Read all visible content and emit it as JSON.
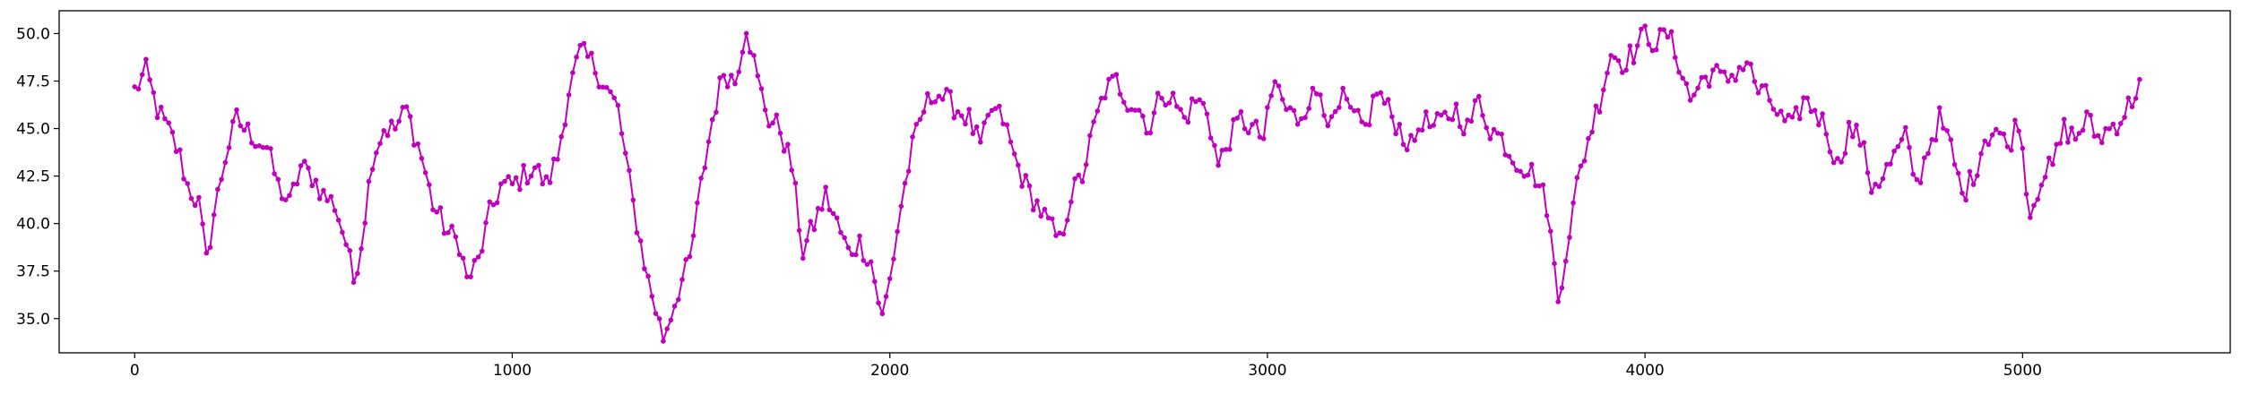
{
  "chart_data": {
    "type": "line",
    "title": "",
    "xlabel": "",
    "ylabel": "",
    "xlim": [
      -200,
      5550
    ],
    "ylim": [
      33.2,
      51.2
    ],
    "x_ticks": [
      0,
      1000,
      2000,
      3000,
      4000,
      5000
    ],
    "y_ticks": [
      35.0,
      37.5,
      40.0,
      42.5,
      45.0,
      47.5,
      50.0
    ],
    "x_tick_labels": [
      "0",
      "1000",
      "2000",
      "3000",
      "4000",
      "5000"
    ],
    "y_tick_labels": [
      "35.0",
      "37.5",
      "40.0",
      "42.5",
      "45.0",
      "47.5",
      "50.0"
    ],
    "grid": false,
    "legend": "none",
    "series": [
      {
        "color": "#bf00bf",
        "marker": "circle",
        "x_start": 0,
        "x_step": 10,
        "anchors": [
          [
            0,
            47.0
          ],
          [
            30,
            48.0
          ],
          [
            60,
            46.0
          ],
          [
            100,
            44.5
          ],
          [
            120,
            43.5
          ],
          [
            140,
            42.0
          ],
          [
            170,
            41.0
          ],
          [
            190,
            38.0
          ],
          [
            210,
            40.5
          ],
          [
            240,
            43.5
          ],
          [
            270,
            45.5
          ],
          [
            290,
            45.0
          ],
          [
            320,
            44.5
          ],
          [
            350,
            44.0
          ],
          [
            380,
            42.0
          ],
          [
            410,
            41.0
          ],
          [
            440,
            43.0
          ],
          [
            470,
            42.5
          ],
          [
            500,
            41.5
          ],
          [
            530,
            41.0
          ],
          [
            560,
            39.0
          ],
          [
            580,
            37.0
          ],
          [
            600,
            39.0
          ],
          [
            630,
            43.5
          ],
          [
            660,
            45.0
          ],
          [
            690,
            45.0
          ],
          [
            720,
            46.0
          ],
          [
            760,
            43.5
          ],
          [
            790,
            41.0
          ],
          [
            830,
            39.5
          ],
          [
            860,
            39.0
          ],
          [
            880,
            37.0
          ],
          [
            910,
            38.0
          ],
          [
            940,
            40.5
          ],
          [
            970,
            42.0
          ],
          [
            1000,
            42.0
          ],
          [
            1030,
            42.5
          ],
          [
            1060,
            43.0
          ],
          [
            1090,
            42.0
          ],
          [
            1120,
            43.5
          ],
          [
            1150,
            47.0
          ],
          [
            1180,
            49.0
          ],
          [
            1210,
            48.5
          ],
          [
            1240,
            47.5
          ],
          [
            1280,
            46.0
          ],
          [
            1320,
            41.0
          ],
          [
            1360,
            37.0
          ],
          [
            1400,
            34.0
          ],
          [
            1440,
            36.5
          ],
          [
            1470,
            38.0
          ],
          [
            1500,
            42.0
          ],
          [
            1530,
            45.5
          ],
          [
            1560,
            48.0
          ],
          [
            1590,
            47.5
          ],
          [
            1620,
            50.5
          ],
          [
            1650,
            47.5
          ],
          [
            1680,
            45.5
          ],
          [
            1710,
            45.0
          ],
          [
            1740,
            43.0
          ],
          [
            1770,
            38.5
          ],
          [
            1800,
            40.0
          ],
          [
            1830,
            41.5
          ],
          [
            1860,
            40.0
          ],
          [
            1890,
            38.5
          ],
          [
            1920,
            39.0
          ],
          [
            1950,
            38.0
          ],
          [
            1980,
            35.0
          ],
          [
            2000,
            37.0
          ],
          [
            2030,
            41.0
          ],
          [
            2060,
            44.0
          ],
          [
            2090,
            46.0
          ],
          [
            2120,
            47.0
          ],
          [
            2150,
            46.5
          ],
          [
            2180,
            46.0
          ],
          [
            2210,
            45.5
          ],
          [
            2240,
            44.0
          ],
          [
            2270,
            46.0
          ],
          [
            2300,
            45.5
          ],
          [
            2330,
            43.5
          ],
          [
            2360,
            42.0
          ],
          [
            2390,
            41.0
          ],
          [
            2420,
            40.0
          ],
          [
            2450,
            39.0
          ],
          [
            2480,
            41.5
          ],
          [
            2510,
            42.5
          ],
          [
            2540,
            45.0
          ],
          [
            2570,
            47.0
          ],
          [
            2600,
            47.5
          ],
          [
            2630,
            46.5
          ],
          [
            2660,
            46.0
          ],
          [
            2690,
            45.0
          ],
          [
            2720,
            47.0
          ],
          [
            2750,
            46.5
          ],
          [
            2780,
            45.5
          ],
          [
            2810,
            46.5
          ],
          [
            2840,
            46.0
          ],
          [
            2870,
            43.0
          ],
          [
            2900,
            44.5
          ],
          [
            2930,
            45.5
          ],
          [
            2960,
            45.0
          ],
          [
            2990,
            44.5
          ],
          [
            3020,
            47.5
          ],
          [
            3050,
            46.0
          ],
          [
            3080,
            45.5
          ],
          [
            3110,
            46.5
          ],
          [
            3140,
            47.0
          ],
          [
            3170,
            45.0
          ],
          [
            3200,
            46.5
          ],
          [
            3230,
            45.5
          ],
          [
            3260,
            45.0
          ],
          [
            3290,
            47.0
          ],
          [
            3320,
            46.0
          ],
          [
            3350,
            45.0
          ],
          [
            3380,
            44.0
          ],
          [
            3410,
            45.5
          ],
          [
            3440,
            45.0
          ],
          [
            3470,
            45.5
          ],
          [
            3500,
            46.0
          ],
          [
            3530,
            45.0
          ],
          [
            3560,
            46.5
          ],
          [
            3590,
            45.0
          ],
          [
            3620,
            44.5
          ],
          [
            3650,
            43.5
          ],
          [
            3680,
            43.0
          ],
          [
            3710,
            42.5
          ],
          [
            3740,
            41.0
          ],
          [
            3770,
            36.0
          ],
          [
            3790,
            38.5
          ],
          [
            3820,
            42.0
          ],
          [
            3850,
            44.5
          ],
          [
            3880,
            46.5
          ],
          [
            3910,
            49.0
          ],
          [
            3940,
            48.5
          ],
          [
            3970,
            49.0
          ],
          [
            4000,
            50.0
          ],
          [
            4030,
            49.5
          ],
          [
            4060,
            50.0
          ],
          [
            4090,
            48.5
          ],
          [
            4120,
            46.5
          ],
          [
            4150,
            47.5
          ],
          [
            4180,
            48.0
          ],
          [
            4210,
            47.5
          ],
          [
            4240,
            48.0
          ],
          [
            4270,
            48.5
          ],
          [
            4300,
            47.0
          ],
          [
            4330,
            46.5
          ],
          [
            4360,
            45.5
          ],
          [
            4390,
            45.0
          ],
          [
            4420,
            46.5
          ],
          [
            4450,
            46.0
          ],
          [
            4480,
            45.0
          ],
          [
            4510,
            43.0
          ],
          [
            4540,
            45.0
          ],
          [
            4570,
            44.5
          ],
          [
            4600,
            42.0
          ],
          [
            4630,
            42.5
          ],
          [
            4660,
            43.5
          ],
          [
            4690,
            44.5
          ],
          [
            4720,
            42.0
          ],
          [
            4750,
            44.0
          ],
          [
            4780,
            45.5
          ],
          [
            4810,
            44.0
          ],
          [
            4840,
            41.5
          ],
          [
            4870,
            42.5
          ],
          [
            4900,
            44.5
          ],
          [
            4930,
            45.0
          ],
          [
            4960,
            44.0
          ],
          [
            4990,
            45.5
          ],
          [
            5020,
            40.5
          ],
          [
            5050,
            42.5
          ],
          [
            5080,
            43.0
          ],
          [
            5110,
            45.0
          ],
          [
            5140,
            44.5
          ],
          [
            5170,
            45.5
          ],
          [
            5200,
            44.5
          ],
          [
            5230,
            45.0
          ],
          [
            5260,
            45.5
          ],
          [
            5290,
            46.5
          ],
          [
            5310,
            47.5
          ]
        ]
      }
    ]
  }
}
